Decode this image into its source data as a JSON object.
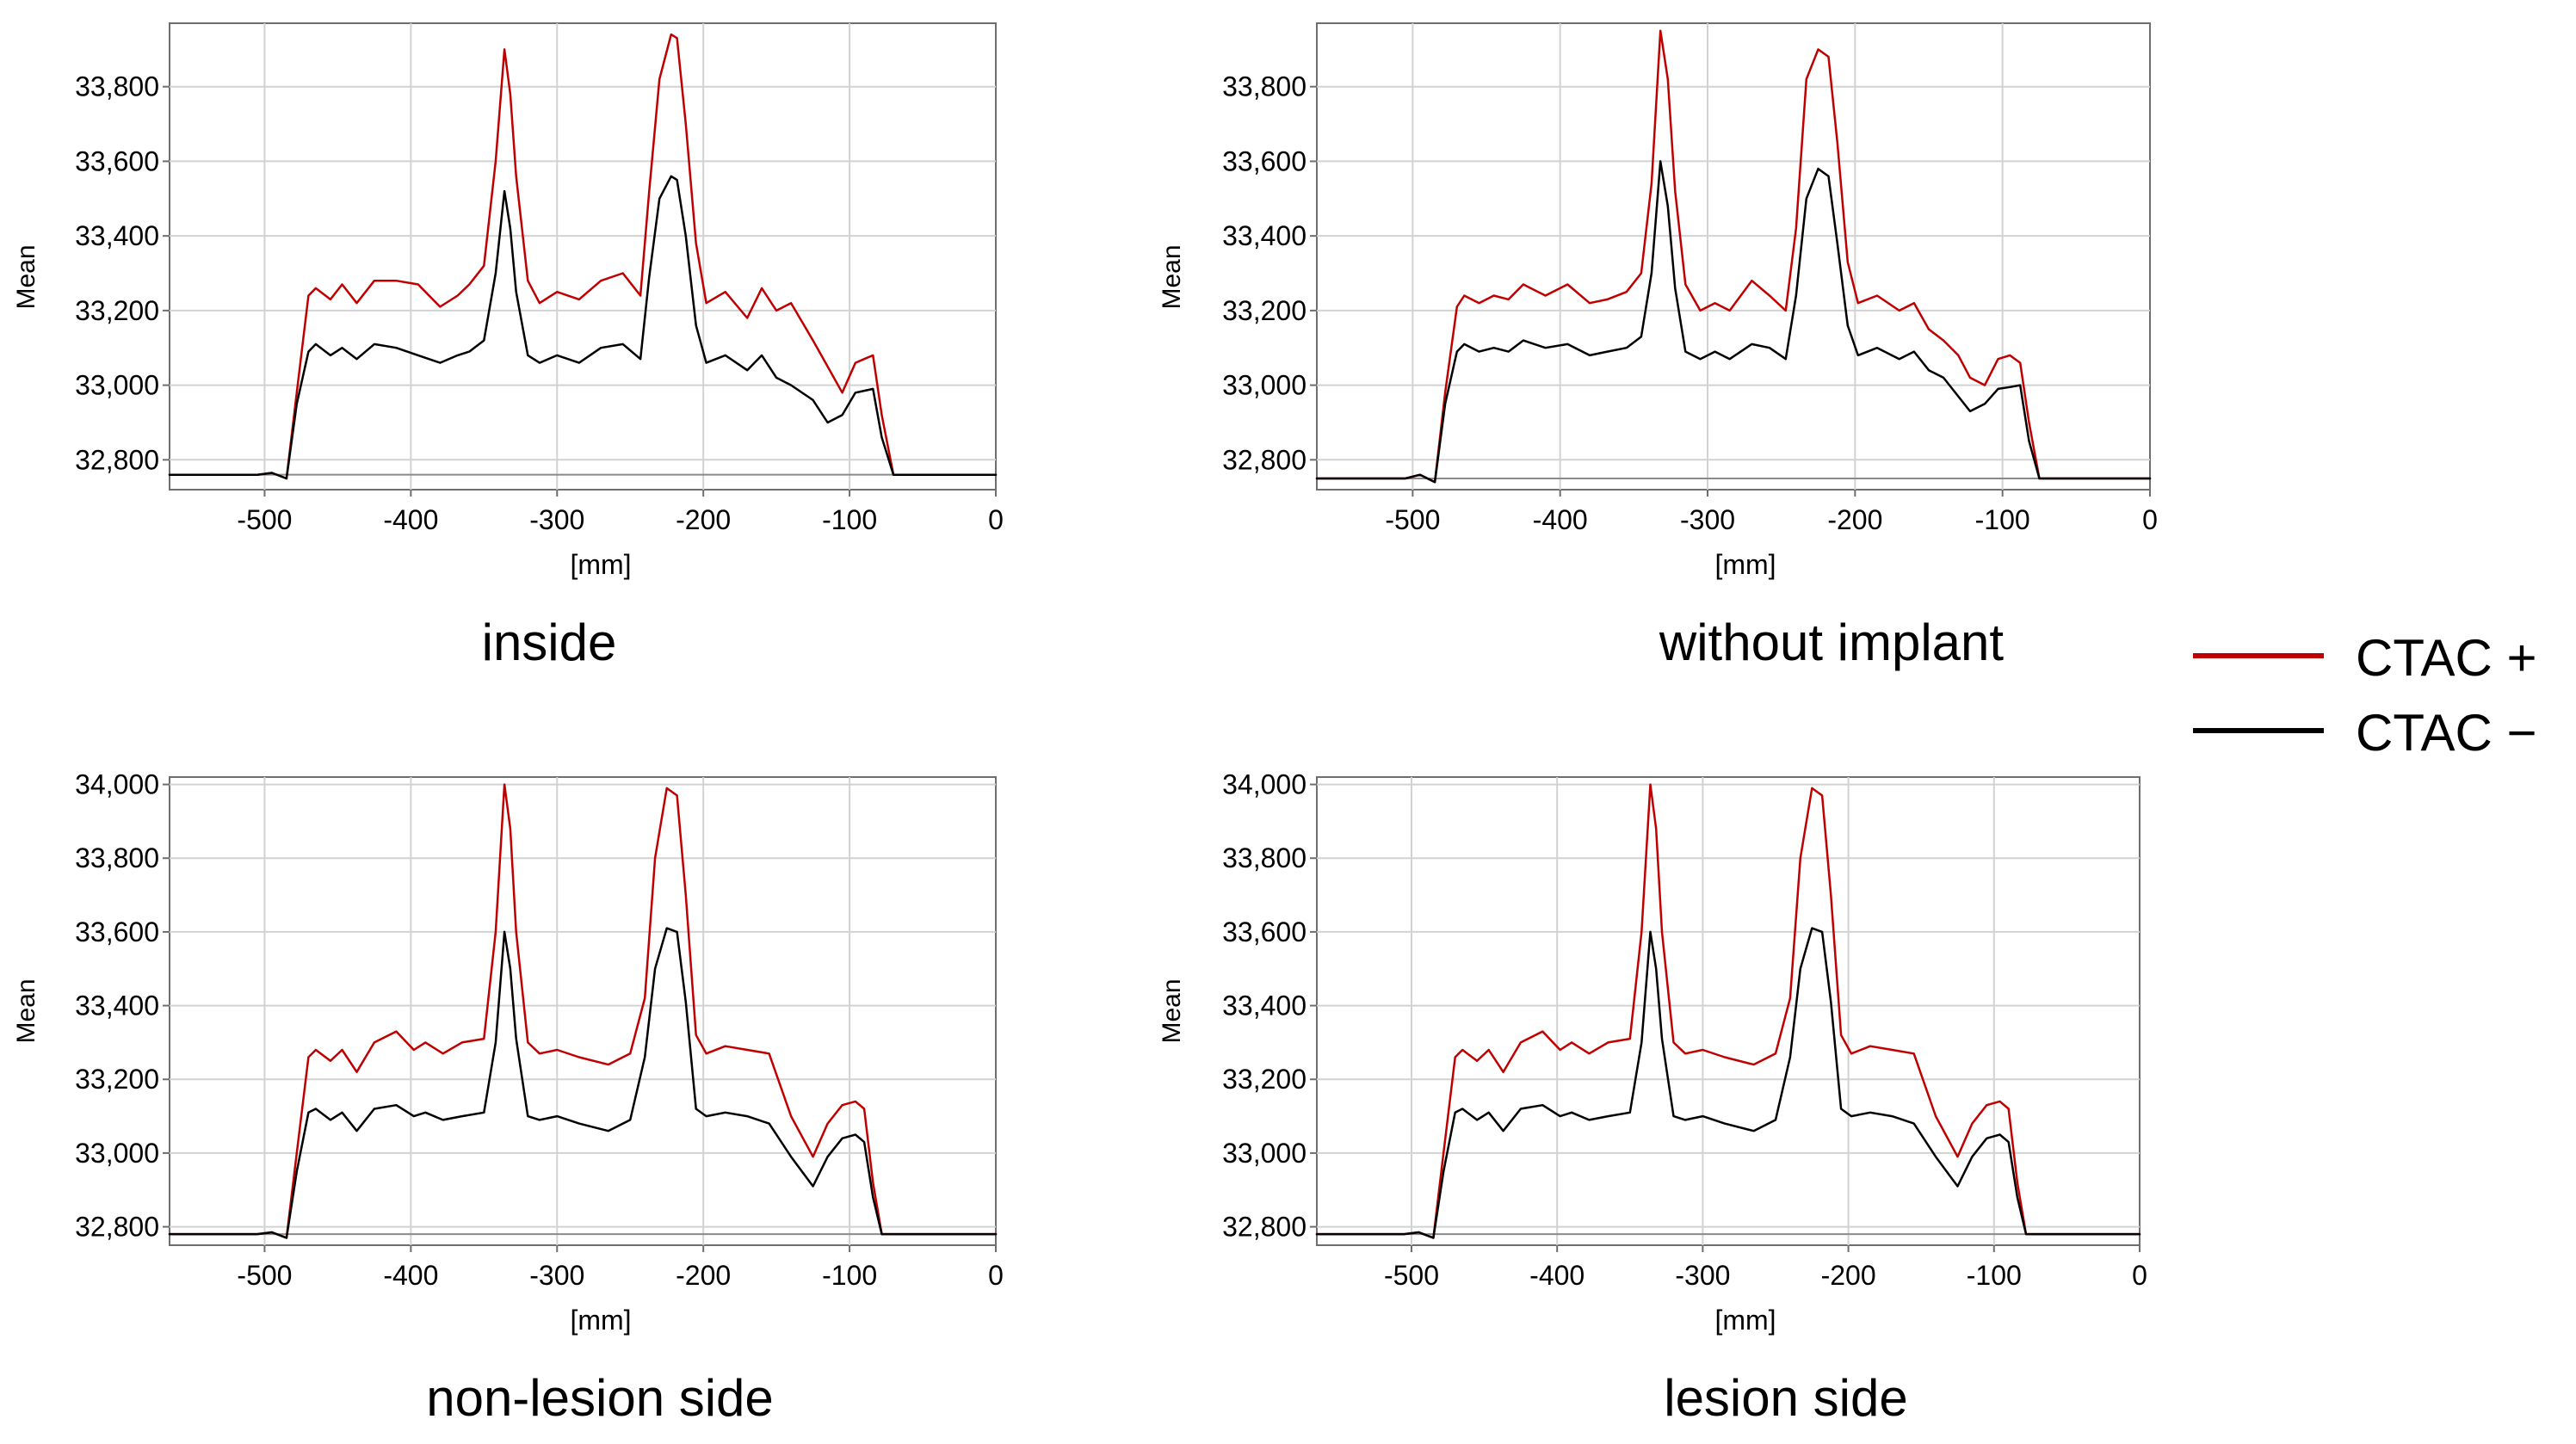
{
  "legend": {
    "position": "right",
    "entries": [
      {
        "label": "CTAC +",
        "color": "#c00000"
      },
      {
        "label": "CTAC −",
        "color": "#000000"
      }
    ]
  },
  "chart_data": [
    {
      "type": "line",
      "title": "inside",
      "xlabel": "[mm]",
      "ylabel": "Mean",
      "xlim": [
        -565,
        0
      ],
      "ylim": [
        32720,
        33970
      ],
      "xticks": [
        -500,
        -400,
        -300,
        -200,
        -100,
        0
      ],
      "xtick_labels": [
        "-500",
        "-400",
        "-300",
        "-200",
        "-100",
        "0"
      ],
      "yticks": [
        32800,
        33000,
        33200,
        33400,
        33600,
        33800
      ],
      "ytick_labels": [
        "32,800",
        "33,000",
        "33,200",
        "33,400",
        "33,600",
        "33,800"
      ],
      "hlines": [
        32760
      ],
      "grid": true,
      "series": [
        {
          "name": "CTAC +",
          "color": "#c00000",
          "x": [
            -565,
            -505,
            -495,
            -485,
            -478,
            -470,
            -465,
            -455,
            -447,
            -437,
            -425,
            -410,
            -395,
            -380,
            -368,
            -360,
            -350,
            -342,
            -336,
            -332,
            -328,
            -320,
            -312,
            -300,
            -285,
            -270,
            -255,
            -243,
            -237,
            -230,
            -222,
            -218,
            -212,
            -205,
            -198,
            -185,
            -170,
            -160,
            -150,
            -140,
            -125,
            -115,
            -105,
            -96,
            -90,
            -84,
            -78,
            -70,
            -60,
            0
          ],
          "y": [
            32760,
            32760,
            32765,
            32750,
            32980,
            33240,
            33260,
            33230,
            33270,
            33220,
            33280,
            33280,
            33270,
            33210,
            33240,
            33270,
            33320,
            33600,
            33900,
            33780,
            33560,
            33280,
            33220,
            33250,
            33230,
            33280,
            33300,
            33240,
            33520,
            33820,
            33940,
            33930,
            33700,
            33380,
            33220,
            33250,
            33180,
            33260,
            33200,
            33220,
            33120,
            33050,
            32980,
            33060,
            33070,
            33080,
            32920,
            32760,
            32760,
            32760
          ]
        },
        {
          "name": "CTAC −",
          "color": "#000000",
          "x": [
            -565,
            -505,
            -495,
            -485,
            -478,
            -470,
            -465,
            -455,
            -447,
            -437,
            -425,
            -410,
            -395,
            -380,
            -368,
            -360,
            -350,
            -342,
            -336,
            -332,
            -328,
            -320,
            -312,
            -300,
            -285,
            -270,
            -255,
            -243,
            -237,
            -230,
            -222,
            -218,
            -212,
            -205,
            -198,
            -185,
            -170,
            -160,
            -150,
            -140,
            -125,
            -115,
            -105,
            -96,
            -90,
            -84,
            -78,
            -70,
            -60,
            0
          ],
          "y": [
            32760,
            32760,
            32765,
            32750,
            32950,
            33090,
            33110,
            33080,
            33100,
            33070,
            33110,
            33100,
            33080,
            33060,
            33080,
            33090,
            33120,
            33300,
            33520,
            33420,
            33250,
            33080,
            33060,
            33080,
            33060,
            33100,
            33110,
            33070,
            33290,
            33500,
            33560,
            33550,
            33400,
            33160,
            33060,
            33080,
            33040,
            33080,
            33020,
            33000,
            32960,
            32900,
            32920,
            32980,
            32985,
            32990,
            32860,
            32760,
            32760,
            32760
          ]
        }
      ]
    },
    {
      "type": "line",
      "title": "without implant",
      "xlabel": "[mm]",
      "ylabel": "Mean",
      "xlim": [
        -565,
        0
      ],
      "ylim": [
        32720,
        33970
      ],
      "xticks": [
        -500,
        -400,
        -300,
        -200,
        -100,
        0
      ],
      "xtick_labels": [
        "-500",
        "-400",
        "-300",
        "-200",
        "-100",
        "0"
      ],
      "yticks": [
        32800,
        33000,
        33200,
        33400,
        33600,
        33800
      ],
      "ytick_labels": [
        "32,800",
        "33,000",
        "33,200",
        "33,400",
        "33,600",
        "33,800"
      ],
      "hlines": [
        32750
      ],
      "grid": true,
      "series": [
        {
          "name": "CTAC +",
          "color": "#c00000",
          "x": [
            -565,
            -505,
            -495,
            -485,
            -478,
            -470,
            -465,
            -455,
            -445,
            -435,
            -425,
            -410,
            -395,
            -380,
            -368,
            -355,
            -345,
            -338,
            -332,
            -327,
            -322,
            -315,
            -305,
            -295,
            -285,
            -270,
            -258,
            -247,
            -240,
            -233,
            -225,
            -218,
            -212,
            -205,
            -198,
            -185,
            -170,
            -160,
            -150,
            -140,
            -130,
            -122,
            -112,
            -103,
            -95,
            -88,
            -82,
            -75,
            -65,
            0
          ],
          "y": [
            32750,
            32750,
            32760,
            32740,
            32980,
            33210,
            33240,
            33220,
            33240,
            33230,
            33270,
            33240,
            33270,
            33220,
            33230,
            33250,
            33300,
            33540,
            33950,
            33820,
            33520,
            33270,
            33200,
            33220,
            33200,
            33280,
            33240,
            33200,
            33420,
            33820,
            33900,
            33880,
            33650,
            33330,
            33220,
            33240,
            33200,
            33220,
            33150,
            33120,
            33080,
            33020,
            33000,
            33070,
            33080,
            33060,
            32900,
            32750,
            32750,
            32750
          ]
        },
        {
          "name": "CTAC −",
          "color": "#000000",
          "x": [
            -565,
            -505,
            -495,
            -485,
            -478,
            -470,
            -465,
            -455,
            -445,
            -435,
            -425,
            -410,
            -395,
            -380,
            -368,
            -355,
            -345,
            -338,
            -332,
            -327,
            -322,
            -315,
            -305,
            -295,
            -285,
            -270,
            -258,
            -247,
            -240,
            -233,
            -225,
            -218,
            -212,
            -205,
            -198,
            -185,
            -170,
            -160,
            -150,
            -140,
            -130,
            -122,
            -112,
            -103,
            -95,
            -88,
            -82,
            -75,
            -65,
            0
          ],
          "y": [
            32750,
            32750,
            32760,
            32740,
            32950,
            33090,
            33110,
            33090,
            33100,
            33090,
            33120,
            33100,
            33110,
            33080,
            33090,
            33100,
            33130,
            33300,
            33600,
            33480,
            33260,
            33090,
            33070,
            33090,
            33070,
            33110,
            33100,
            33070,
            33240,
            33500,
            33580,
            33560,
            33380,
            33160,
            33080,
            33100,
            33070,
            33090,
            33040,
            33020,
            32970,
            32930,
            32950,
            32990,
            32995,
            33000,
            32850,
            32750,
            32750,
            32750
          ]
        }
      ]
    },
    {
      "type": "line",
      "title": "non-lesion side",
      "xlabel": "[mm]",
      "ylabel": "Mean",
      "xlim": [
        -565,
        0
      ],
      "ylim": [
        32750,
        34020
      ],
      "xticks": [
        -500,
        -400,
        -300,
        -200,
        -100,
        0
      ],
      "xtick_labels": [
        "-500",
        "-400",
        "-300",
        "-200",
        "-100",
        "0"
      ],
      "yticks": [
        32800,
        33000,
        33200,
        33400,
        33600,
        33800,
        34000
      ],
      "ytick_labels": [
        "32,800",
        "33,000",
        "33,200",
        "33,400",
        "33,600",
        "33,800",
        "34,000"
      ],
      "hlines": [
        32780
      ],
      "grid": true,
      "series": [
        {
          "name": "CTAC +",
          "color": "#c00000",
          "x": [
            -565,
            -505,
            -495,
            -485,
            -478,
            -470,
            -465,
            -455,
            -447,
            -437,
            -425,
            -410,
            -398,
            -390,
            -378,
            -365,
            -350,
            -342,
            -336,
            -332,
            -328,
            -320,
            -312,
            -300,
            -285,
            -265,
            -250,
            -240,
            -233,
            -225,
            -218,
            -212,
            -205,
            -198,
            -185,
            -170,
            -155,
            -140,
            -125,
            -115,
            -105,
            -96,
            -90,
            -84,
            -78,
            -70,
            -60,
            0
          ],
          "y": [
            32780,
            32780,
            32785,
            32770,
            33000,
            33260,
            33280,
            33250,
            33280,
            33220,
            33300,
            33330,
            33280,
            33300,
            33270,
            33300,
            33310,
            33600,
            34000,
            33880,
            33600,
            33300,
            33270,
            33280,
            33260,
            33240,
            33270,
            33420,
            33800,
            33990,
            33970,
            33700,
            33320,
            33270,
            33290,
            33280,
            33270,
            33100,
            32990,
            33080,
            33130,
            33140,
            33120,
            32920,
            32780,
            32780,
            32780,
            32780
          ]
        },
        {
          "name": "CTAC −",
          "color": "#000000",
          "x": [
            -565,
            -505,
            -495,
            -485,
            -478,
            -470,
            -465,
            -455,
            -447,
            -437,
            -425,
            -410,
            -398,
            -390,
            -378,
            -365,
            -350,
            -342,
            -336,
            -332,
            -328,
            -320,
            -312,
            -300,
            -285,
            -265,
            -250,
            -240,
            -233,
            -225,
            -218,
            -212,
            -205,
            -198,
            -185,
            -170,
            -155,
            -140,
            -125,
            -115,
            -105,
            -96,
            -90,
            -84,
            -78,
            -70,
            -60,
            0
          ],
          "y": [
            32780,
            32780,
            32785,
            32770,
            32950,
            33110,
            33120,
            33090,
            33110,
            33060,
            33120,
            33130,
            33100,
            33110,
            33090,
            33100,
            33110,
            33300,
            33600,
            33500,
            33310,
            33100,
            33090,
            33100,
            33080,
            33060,
            33090,
            33260,
            33500,
            33610,
            33600,
            33410,
            33120,
            33100,
            33110,
            33100,
            33080,
            32990,
            32910,
            32990,
            33040,
            33050,
            33030,
            32880,
            32780,
            32780,
            32780,
            32780
          ]
        }
      ]
    },
    {
      "type": "line",
      "title": "lesion side",
      "xlabel": "[mm]",
      "ylabel": "Mean",
      "xlim": [
        -565,
        0
      ],
      "ylim": [
        32750,
        34020
      ],
      "xticks": [
        -500,
        -400,
        -300,
        -200,
        -100,
        0
      ],
      "xtick_labels": [
        "-500",
        "-400",
        "-300",
        "-200",
        "-100",
        "0"
      ],
      "yticks": [
        32800,
        33000,
        33200,
        33400,
        33600,
        33800,
        34000
      ],
      "ytick_labels": [
        "32,800",
        "33,000",
        "33,200",
        "33,400",
        "33,600",
        "33,800",
        "34,000"
      ],
      "hlines": [
        32780
      ],
      "grid": true,
      "series": [
        {
          "name": "CTAC +",
          "color": "#c00000",
          "x": [
            -565,
            -505,
            -495,
            -485,
            -478,
            -470,
            -465,
            -455,
            -447,
            -437,
            -425,
            -410,
            -398,
            -390,
            -378,
            -365,
            -350,
            -342,
            -336,
            -332,
            -328,
            -320,
            -312,
            -300,
            -285,
            -265,
            -250,
            -240,
            -233,
            -225,
            -218,
            -212,
            -205,
            -198,
            -185,
            -170,
            -155,
            -140,
            -125,
            -115,
            -105,
            -96,
            -90,
            -84,
            -78,
            -70,
            -60,
            0
          ],
          "y": [
            32780,
            32780,
            32785,
            32770,
            33000,
            33260,
            33280,
            33250,
            33280,
            33220,
            33300,
            33330,
            33280,
            33300,
            33270,
            33300,
            33310,
            33600,
            34000,
            33880,
            33600,
            33300,
            33270,
            33280,
            33260,
            33240,
            33270,
            33420,
            33800,
            33990,
            33970,
            33700,
            33320,
            33270,
            33290,
            33280,
            33270,
            33100,
            32990,
            33080,
            33130,
            33140,
            33120,
            32920,
            32780,
            32780,
            32780,
            32780
          ]
        },
        {
          "name": "CTAC −",
          "color": "#000000",
          "x": [
            -565,
            -505,
            -495,
            -485,
            -478,
            -470,
            -465,
            -455,
            -447,
            -437,
            -425,
            -410,
            -398,
            -390,
            -378,
            -365,
            -350,
            -342,
            -336,
            -332,
            -328,
            -320,
            -312,
            -300,
            -285,
            -265,
            -250,
            -240,
            -233,
            -225,
            -218,
            -212,
            -205,
            -198,
            -185,
            -170,
            -155,
            -140,
            -125,
            -115,
            -105,
            -96,
            -90,
            -84,
            -78,
            -70,
            -60,
            0
          ],
          "y": [
            32780,
            32780,
            32785,
            32770,
            32950,
            33110,
            33120,
            33090,
            33110,
            33060,
            33120,
            33130,
            33100,
            33110,
            33090,
            33100,
            33110,
            33300,
            33600,
            33500,
            33310,
            33100,
            33090,
            33100,
            33080,
            33060,
            33090,
            33260,
            33500,
            33610,
            33600,
            33410,
            33120,
            33100,
            33110,
            33100,
            33080,
            32990,
            32910,
            32990,
            33040,
            33050,
            33030,
            32880,
            32780,
            32780,
            32780,
            32780
          ]
        }
      ]
    }
  ]
}
